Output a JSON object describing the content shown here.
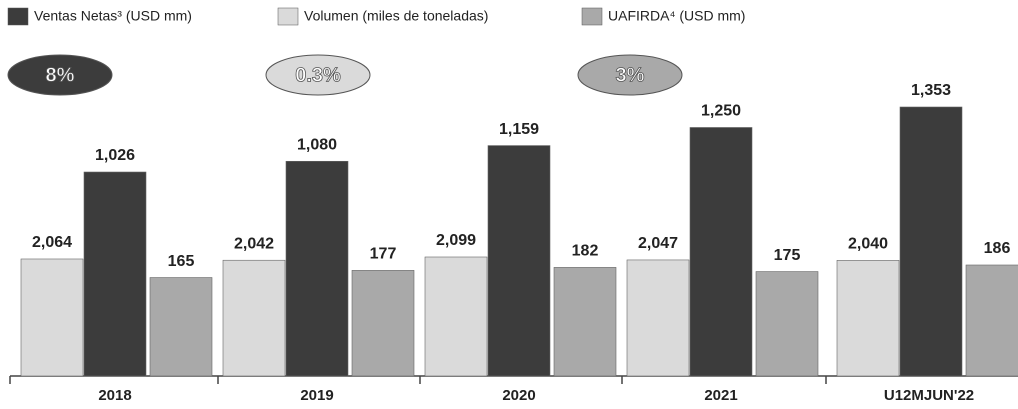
{
  "chart_data": {
    "type": "bar",
    "categories": [
      "2018",
      "2019",
      "2020",
      "2021",
      "U12MJUN'22"
    ],
    "series": [
      {
        "name": "Volumen (miles de toneladas)",
        "color": "#dadada",
        "values": [
          2064,
          2042,
          2099,
          2047,
          2040
        ],
        "value_labels": [
          "2,064",
          "2,042",
          "2,099",
          "2,047",
          "2,040"
        ],
        "badge": "0.3%"
      },
      {
        "name": "Ventas Netas³ (USD mm)",
        "color": "#3c3c3c",
        "values": [
          1026,
          1080,
          1159,
          1250,
          1353
        ],
        "value_labels": [
          "1,026",
          "1,080",
          "1,159",
          "1,250",
          "1,353"
        ],
        "badge": "8%"
      },
      {
        "name": "UAFIRDA⁴ (USD mm)",
        "color": "#a9a9a9",
        "values": [
          165,
          177,
          182,
          175,
          186
        ],
        "badge": "3%"
      }
    ]
  }
}
